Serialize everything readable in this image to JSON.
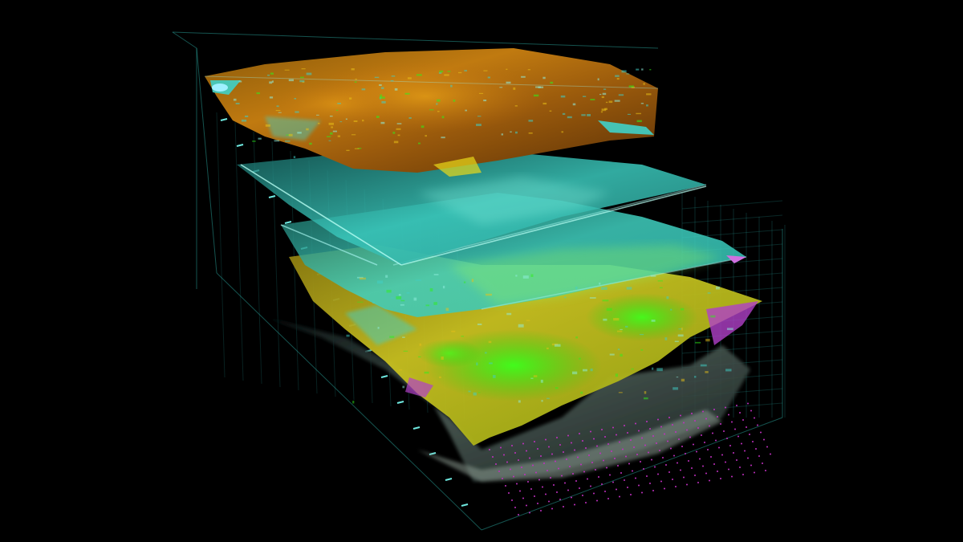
{
  "scene": {
    "background": "#000000",
    "layers": [
      {
        "id": "top-horizon",
        "palette": [
          "#6a3a08",
          "#c07a10",
          "#e8a014",
          "#3fd0c8"
        ]
      },
      {
        "id": "middle-horizon-upper",
        "palette": [
          "#2aa89a",
          "#54d8cc",
          "#9ff0e8"
        ]
      },
      {
        "id": "middle-horizon-lower",
        "palette": [
          "#1e8a80",
          "#3cc6b8",
          "#7de8d8"
        ]
      },
      {
        "id": "bottom-horizon",
        "palette": [
          "#a88a10",
          "#d8c820",
          "#2ef01a",
          "#b040c8"
        ]
      },
      {
        "id": "base-volume",
        "palette": [
          "#0c1616",
          "#5c6e64",
          "#9aa89a"
        ]
      }
    ],
    "grid_color": "#2fb8b0",
    "dot_color": "#c030c0"
  }
}
